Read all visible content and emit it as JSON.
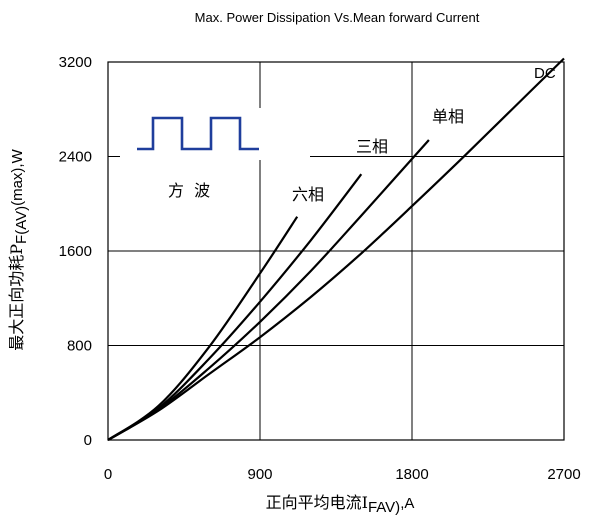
{
  "chart_data": {
    "type": "line",
    "title": "Max. Power Dissipation Vs.Mean forward Current",
    "xlabel": {
      "main": "正向平均电流I",
      "sub": "FAV)",
      "tail": ",A"
    },
    "ylabel": {
      "main": "最大正向功耗P",
      "sub": "F(AV)",
      "tail": "(max),W"
    },
    "xlim": [
      0,
      2700
    ],
    "ylim": [
      0,
      3200
    ],
    "x_ticks": [
      "0",
      "900",
      "1800",
      "2700"
    ],
    "y_ticks": [
      "0",
      "800",
      "1600",
      "2400",
      "3200"
    ],
    "grid": true,
    "legend_text": "方  波",
    "series": [
      {
        "name": "DC",
        "points": [
          [
            0,
            0
          ],
          [
            300,
            250
          ],
          [
            600,
            560
          ],
          [
            900,
            870
          ],
          [
            1200,
            1210
          ],
          [
            1500,
            1580
          ],
          [
            1800,
            1980
          ],
          [
            2100,
            2390
          ],
          [
            2400,
            2810
          ],
          [
            2700,
            3230
          ]
        ]
      },
      {
        "name": "单相",
        "points": [
          [
            0,
            0
          ],
          [
            300,
            260
          ],
          [
            600,
            610
          ],
          [
            900,
            1000
          ],
          [
            1200,
            1430
          ],
          [
            1500,
            1900
          ],
          [
            1900,
            2540
          ]
        ]
      },
      {
        "name": "三相",
        "points": [
          [
            0,
            0
          ],
          [
            300,
            270
          ],
          [
            600,
            690
          ],
          [
            900,
            1170
          ],
          [
            1200,
            1690
          ],
          [
            1500,
            2250
          ]
        ]
      },
      {
        "name": "六相",
        "points": [
          [
            0,
            0
          ],
          [
            300,
            290
          ],
          [
            600,
            790
          ],
          [
            900,
            1410
          ],
          [
            1120,
            1890
          ]
        ]
      }
    ]
  }
}
